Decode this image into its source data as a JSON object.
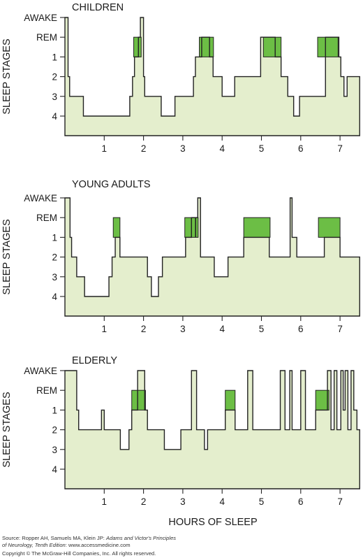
{
  "figure": {
    "y_axis_label": "SLEEP STAGES",
    "x_axis_label": "HOURS OF SLEEP",
    "stage_labels": [
      "AWAKE",
      "REM",
      "1",
      "2",
      "3",
      "4"
    ],
    "x_ticks": [
      "1",
      "2",
      "3",
      "4",
      "5",
      "6",
      "7"
    ]
  },
  "colors": {
    "fill": "#e4eecd",
    "rem": "#6cbe45",
    "line": "#222222"
  },
  "chart_data": [
    {
      "type": "area",
      "title": "CHILDREN",
      "y_categories": [
        "AWAKE",
        "REM",
        "1",
        "2",
        "3",
        "4"
      ],
      "y_values_legend": {
        "AWAKE": 5,
        "REM": 4,
        "1": 3,
        "2": 2,
        "3": 1,
        "4": 0
      },
      "xlim": [
        0,
        7.5
      ],
      "x": [
        0,
        0.08,
        0.12,
        0.15,
        0.2,
        0.28,
        0.47,
        1.6,
        1.65,
        1.72,
        1.77,
        1.87,
        1.92,
        1.96,
        2.0,
        2.03,
        2.08,
        2.15,
        2.45,
        2.8,
        2.85,
        3.23,
        3.27,
        3.32,
        3.48,
        3.68,
        3.77,
        3.83,
        4.0,
        4.32,
        4.55,
        4.98,
        5.2,
        5.35,
        5.5,
        5.63,
        5.67,
        5.72,
        5.82,
        5.97,
        6.63,
        6.97,
        7.02,
        7.1,
        7.18,
        7.27
      ],
      "y": [
        5,
        2,
        1,
        1,
        1,
        1,
        0,
        0,
        1,
        2,
        3,
        4,
        5,
        5,
        2,
        1,
        1,
        1,
        0,
        1,
        1,
        1,
        2,
        3,
        4,
        3,
        2,
        2,
        1,
        2,
        2,
        4,
        4,
        3,
        2,
        2,
        1,
        1,
        0,
        1,
        4,
        3,
        2,
        1,
        2,
        2
      ],
      "xend": 7.5,
      "rem_periods": [
        [
          1.75,
          1.94
        ],
        [
          3.42,
          3.78
        ],
        [
          5.05,
          5.5
        ],
        [
          6.43,
          6.95
        ]
      ]
    },
    {
      "type": "area",
      "title": "YOUNG ADULTS",
      "y_categories": [
        "AWAKE",
        "REM",
        "1",
        "2",
        "3",
        "4"
      ],
      "y_values_legend": {
        "AWAKE": 5,
        "REM": 4,
        "1": 3,
        "2": 2,
        "3": 1,
        "4": 0
      },
      "xlim": [
        0,
        7.5
      ],
      "x": [
        0,
        0.13,
        0.17,
        0.3,
        0.5,
        1.05,
        1.12,
        1.2,
        1.28,
        1.4,
        1.58,
        2.1,
        2.2,
        2.38,
        2.48,
        3.02,
        3.07,
        3.12,
        3.22,
        3.33,
        3.38,
        3.45,
        3.55,
        3.8,
        4.0,
        4.15,
        4.42,
        4.55,
        4.97,
        5.2,
        5.3,
        5.6,
        5.73,
        5.78,
        5.9,
        6.42,
        6.6,
        7.0
      ],
      "y": [
        5,
        3,
        2,
        1,
        0,
        0,
        1,
        2,
        3,
        2,
        2,
        1,
        0,
        1,
        2,
        2,
        3,
        3,
        4,
        4,
        5,
        2,
        2,
        1,
        1,
        2,
        2,
        3,
        3,
        2,
        2,
        2,
        5,
        3,
        2,
        2,
        3,
        2
      ],
      "xend": 7.5,
      "rem_periods": [
        [
          1.23,
          1.4
        ],
        [
          3.05,
          3.32
        ],
        [
          3.33,
          3.39
        ],
        [
          4.55,
          5.22
        ],
        [
          6.45,
          7.0
        ]
      ]
    },
    {
      "type": "area",
      "title": "ELDERLY",
      "y_categories": [
        "AWAKE",
        "REM",
        "1",
        "2",
        "3",
        "4"
      ],
      "y_values_legend": {
        "AWAKE": 5,
        "REM": 4,
        "1": 3,
        "2": 2,
        "3": 1,
        "4": 0
      },
      "xlim": [
        0,
        7.5
      ],
      "x": [
        0,
        0.3,
        0.35,
        0.42,
        0.6,
        0.78,
        0.93,
        1.0,
        1.17,
        1.33,
        1.41,
        1.55,
        1.63,
        1.7,
        1.85,
        2.03,
        2.1,
        2.22,
        2.4,
        2.53,
        2.65,
        2.95,
        3.15,
        3.22,
        3.35,
        3.55,
        3.63,
        3.85,
        4.08,
        4.12,
        4.33,
        4.42,
        4.65,
        4.78,
        5.05,
        5.35,
        5.48,
        5.6,
        5.72,
        5.78,
        5.9,
        6.0,
        6.12,
        6.17,
        6.38,
        6.48,
        6.68,
        6.77,
        6.85,
        6.92,
        7.02,
        7.08,
        7.13,
        7.2,
        7.28,
        7.35,
        7.43
      ],
      "y": [
        5,
        3,
        2,
        2,
        2,
        2,
        3,
        2,
        2,
        2,
        1,
        1,
        2,
        3,
        5,
        3,
        2,
        2,
        2,
        1,
        1,
        2,
        2,
        5,
        2,
        1,
        2,
        2,
        3,
        3,
        2,
        2,
        5,
        2,
        2,
        2,
        5,
        2,
        5,
        2,
        2,
        5,
        2,
        2,
        3,
        3,
        5,
        2,
        5,
        2,
        5,
        3,
        5,
        2,
        5,
        3,
        2
      ],
      "xend": 7.5,
      "rem_periods": [
        [
          1.7,
          2.05
        ],
        [
          4.08,
          4.33
        ],
        [
          6.38,
          6.72
        ]
      ]
    }
  ],
  "source": {
    "label": "Source:",
    "authors": "Ropper AH, Samuels MA, Klein JP:",
    "book": "Adams and Victor's Principles",
    "book_line2": "of Neurology, Tenth Edition",
    "site": ": www.accessmedicine.com",
    "copyright": "Copyright © The McGraw-Hill Companies, Inc. All rights reserved."
  }
}
